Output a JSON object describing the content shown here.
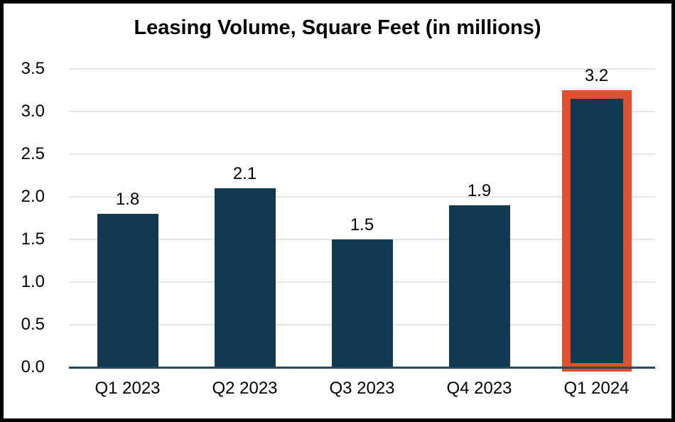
{
  "chart_data": {
    "type": "bar",
    "title": "Leasing Volume, Square Feet (in millions)",
    "categories": [
      "Q1 2023",
      "Q2 2023",
      "Q3 2023",
      "Q4 2023",
      "Q1 2024"
    ],
    "values": [
      1.8,
      2.1,
      1.5,
      1.9,
      3.2
    ],
    "data_labels": [
      "1.8",
      "2.1",
      "1.5",
      "1.9",
      "3.2"
    ],
    "highlighted_index": 4,
    "ylim": [
      0,
      3.5
    ],
    "ytick_step": 0.5,
    "ytick_labels": [
      "0.0",
      "0.5",
      "1.0",
      "1.5",
      "2.0",
      "2.5",
      "3.0",
      "3.5"
    ],
    "xlabel": "",
    "ylabel": "",
    "grid": true,
    "legend": false,
    "colors": {
      "bar": "#113A52",
      "highlight_outline": "#E2512E",
      "gridline": "#E5E5E5",
      "axis_line": "#1E4E63",
      "background": "#FFFFFF",
      "border": "#000000",
      "text": "#000000"
    }
  }
}
